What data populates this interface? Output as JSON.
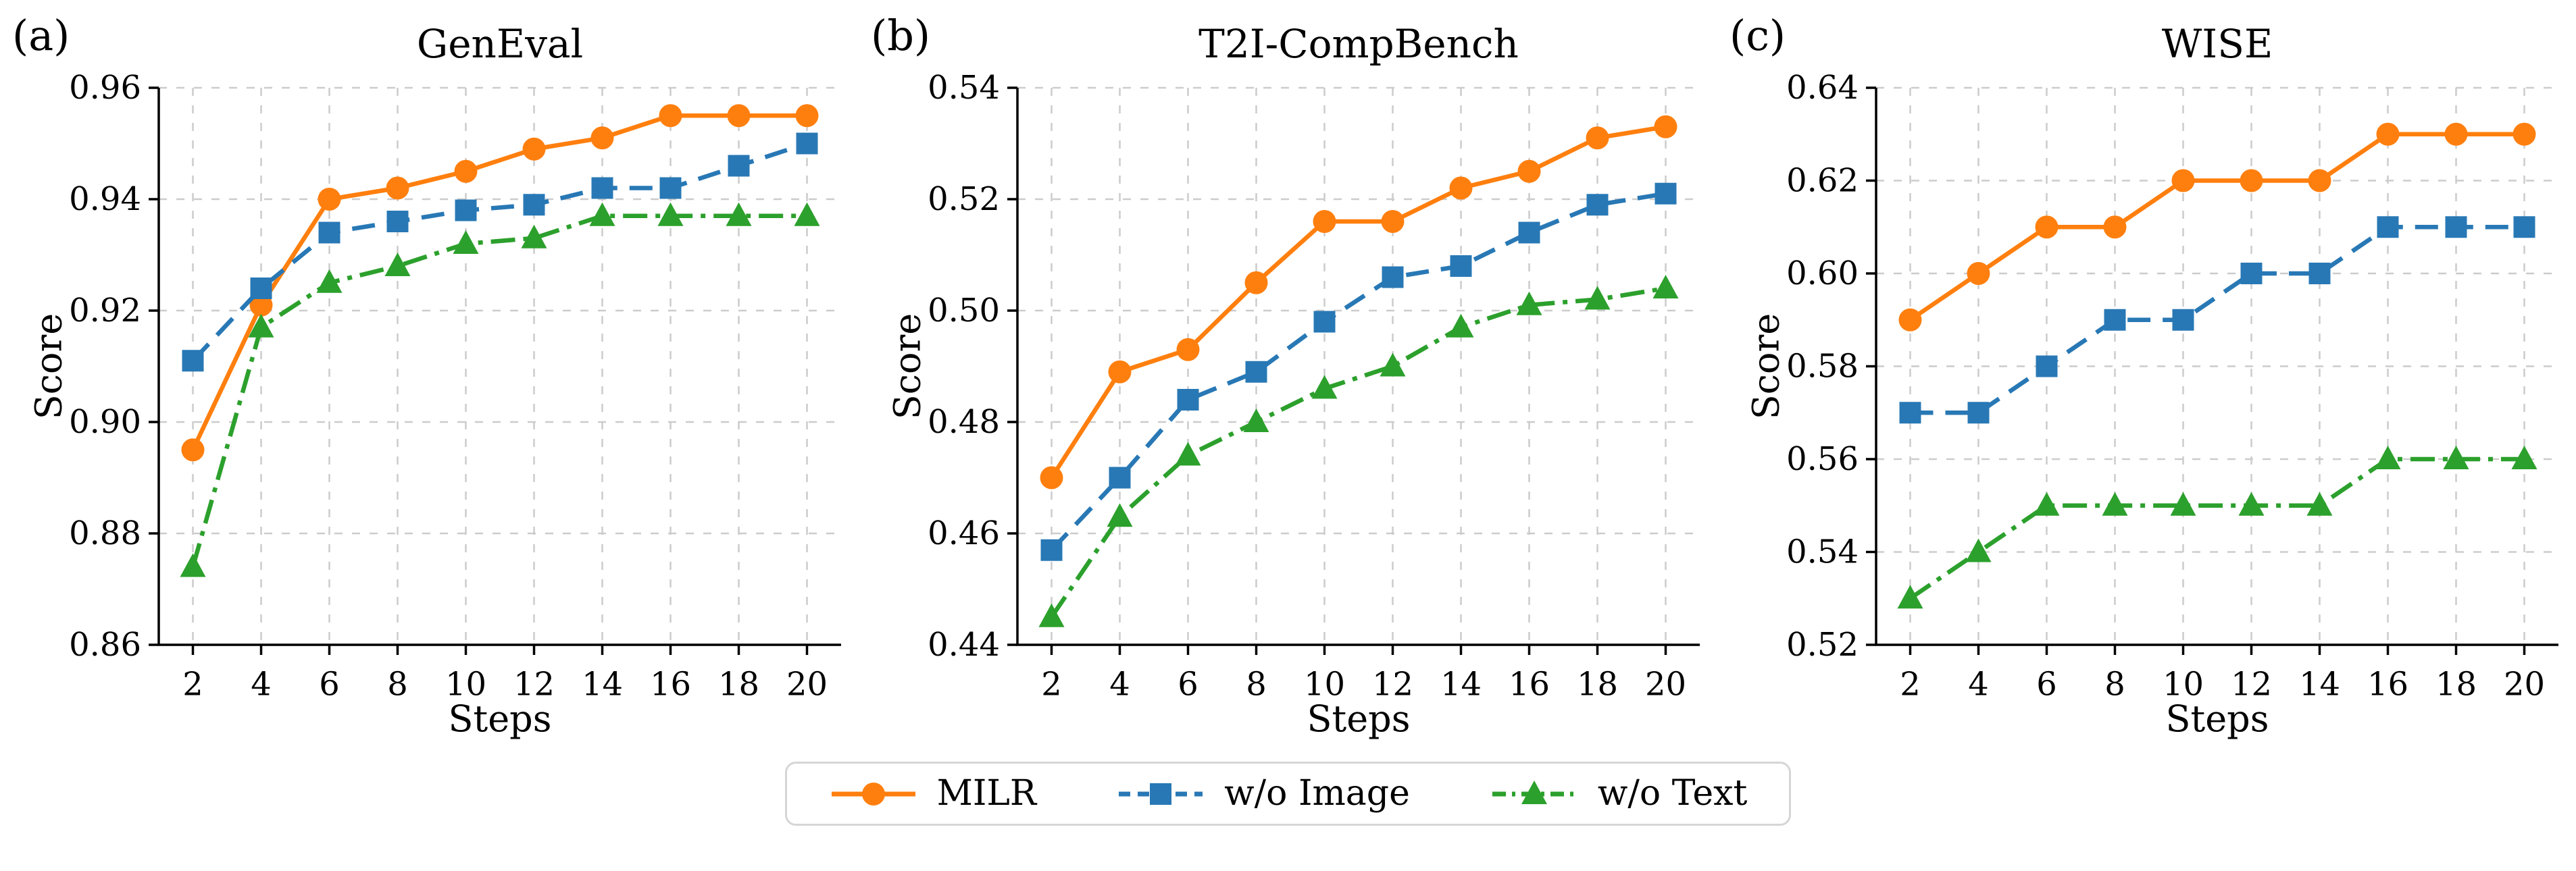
{
  "figure": {
    "background": "#ffffff",
    "grid_color": "#cccccc",
    "axis_color": "#000000",
    "legend_border_color": "#d6d6d6"
  },
  "legend": {
    "entries": [
      {
        "label": "MILR",
        "color": "#ff7f0e",
        "marker": "circle",
        "linestyle": "solid"
      },
      {
        "label": "w/o Image",
        "color": "#2878b5",
        "marker": "square",
        "linestyle": "dashed"
      },
      {
        "label": "w/o Text",
        "color": "#2ca02c",
        "marker": "triangle",
        "linestyle": "dashdot"
      }
    ]
  },
  "chart_data": [
    {
      "type": "line",
      "panel_label": "(a)",
      "title": "GenEval",
      "xlabel": "Steps",
      "ylabel": "Score",
      "x": [
        2,
        4,
        6,
        8,
        10,
        12,
        14,
        16,
        18,
        20
      ],
      "xlim": [
        1,
        21
      ],
      "ylim": [
        0.86,
        0.96
      ],
      "yticks": [
        0.86,
        0.88,
        0.9,
        0.92,
        0.94,
        0.96
      ],
      "grid": true,
      "legend_position": "figure-bottom",
      "series": [
        {
          "name": "MILR",
          "values": [
            0.895,
            0.921,
            0.94,
            0.942,
            0.945,
            0.949,
            0.951,
            0.955,
            0.955,
            0.955
          ]
        },
        {
          "name": "w/o Image",
          "values": [
            0.911,
            0.924,
            0.934,
            0.936,
            0.938,
            0.939,
            0.942,
            0.942,
            0.946,
            0.95
          ]
        },
        {
          "name": "w/o Text",
          "values": [
            0.874,
            0.917,
            0.925,
            0.928,
            0.932,
            0.933,
            0.937,
            0.937,
            0.937,
            0.937
          ]
        }
      ]
    },
    {
      "type": "line",
      "panel_label": "(b)",
      "title": "T2I-CompBench",
      "xlabel": "Steps",
      "ylabel": "Score",
      "x": [
        2,
        4,
        6,
        8,
        10,
        12,
        14,
        16,
        18,
        20
      ],
      "xlim": [
        1,
        21
      ],
      "ylim": [
        0.44,
        0.54
      ],
      "yticks": [
        0.44,
        0.46,
        0.48,
        0.5,
        0.52,
        0.54
      ],
      "grid": true,
      "legend_position": "figure-bottom",
      "series": [
        {
          "name": "MILR",
          "values": [
            0.47,
            0.489,
            0.493,
            0.505,
            0.516,
            0.516,
            0.522,
            0.525,
            0.531,
            0.533
          ]
        },
        {
          "name": "w/o Image",
          "values": [
            0.457,
            0.47,
            0.484,
            0.489,
            0.498,
            0.506,
            0.508,
            0.514,
            0.519,
            0.521
          ]
        },
        {
          "name": "w/o Text",
          "values": [
            0.445,
            0.463,
            0.474,
            0.48,
            0.486,
            0.49,
            0.497,
            0.501,
            0.502,
            0.504
          ]
        }
      ]
    },
    {
      "type": "line",
      "panel_label": "(c)",
      "title": "WISE",
      "xlabel": "Steps",
      "ylabel": "Score",
      "x": [
        2,
        4,
        6,
        8,
        10,
        12,
        14,
        16,
        18,
        20
      ],
      "xlim": [
        1,
        21
      ],
      "ylim": [
        0.52,
        0.64
      ],
      "yticks": [
        0.52,
        0.54,
        0.56,
        0.58,
        0.6,
        0.62,
        0.64
      ],
      "grid": true,
      "legend_position": "figure-bottom",
      "series": [
        {
          "name": "MILR",
          "values": [
            0.59,
            0.6,
            0.61,
            0.61,
            0.62,
            0.62,
            0.62,
            0.63,
            0.63,
            0.63
          ]
        },
        {
          "name": "w/o Image",
          "values": [
            0.57,
            0.57,
            0.58,
            0.59,
            0.59,
            0.6,
            0.6,
            0.61,
            0.61,
            0.61
          ]
        },
        {
          "name": "w/o Text",
          "values": [
            0.53,
            0.54,
            0.55,
            0.55,
            0.55,
            0.55,
            0.55,
            0.56,
            0.56,
            0.56
          ]
        }
      ]
    }
  ]
}
